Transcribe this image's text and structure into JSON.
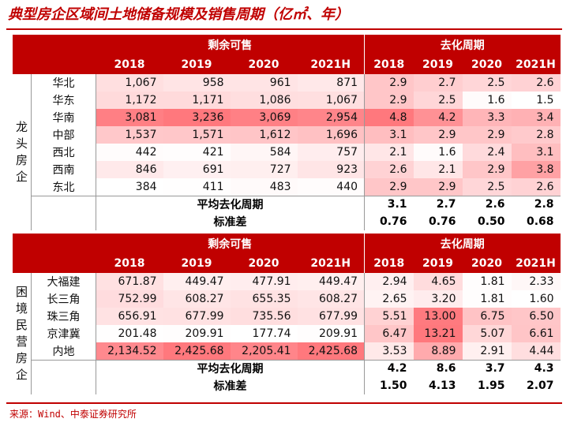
{
  "title": "典型房企区域间土地储备规模及销售周期（亿㎡、年）",
  "headers": {
    "inventory": "剩余可售",
    "cycle": "去化周期",
    "years": [
      "2018",
      "2019",
      "2020",
      "2021H"
    ]
  },
  "colors": {
    "header_bg": "#c00000",
    "accent": "#c00000"
  },
  "sections": [
    {
      "group_label": "龙头房企",
      "rows": [
        {
          "region": "华北",
          "inventory": [
            "1,067",
            "958",
            "961",
            "871"
          ],
          "cycle": [
            "2.9",
            "2.7",
            "2.5",
            "2.6"
          ]
        },
        {
          "region": "华东",
          "inventory": [
            "1,172",
            "1,171",
            "1,086",
            "1,067"
          ],
          "cycle": [
            "2.9",
            "2.5",
            "1.6",
            "1.5"
          ]
        },
        {
          "region": "华南",
          "inventory": [
            "3,081",
            "3,236",
            "3,069",
            "2,954"
          ],
          "cycle": [
            "4.8",
            "4.2",
            "3.3",
            "3.4"
          ]
        },
        {
          "region": "中部",
          "inventory": [
            "1,537",
            "1,571",
            "1,612",
            "1,696"
          ],
          "cycle": [
            "3.1",
            "2.9",
            "2.9",
            "2.8"
          ]
        },
        {
          "region": "西北",
          "inventory": [
            "442",
            "421",
            "584",
            "757"
          ],
          "cycle": [
            "2.1",
            "1.6",
            "2.4",
            "3.1"
          ]
        },
        {
          "region": "西南",
          "inventory": [
            "846",
            "691",
            "727",
            "923"
          ],
          "cycle": [
            "2.6",
            "2.1",
            "2.9",
            "3.8"
          ]
        },
        {
          "region": "东北",
          "inventory": [
            "384",
            "411",
            "483",
            "440"
          ],
          "cycle": [
            "2.9",
            "2.9",
            "2.5",
            "2.6"
          ]
        }
      ],
      "avg_label": "平均去化周期",
      "avg": [
        "3.1",
        "2.7",
        "2.6",
        "2.8"
      ],
      "std_label": "标准差",
      "std": [
        "0.76",
        "0.76",
        "0.50",
        "0.68"
      ]
    },
    {
      "group_label": "困境民营房企",
      "rows": [
        {
          "region": "大福建",
          "inventory": [
            "671.87",
            "449.47",
            "477.91",
            "449.47"
          ],
          "cycle": [
            "2.94",
            "4.65",
            "1.81",
            "2.33"
          ]
        },
        {
          "region": "长三角",
          "inventory": [
            "752.99",
            "608.27",
            "655.35",
            "608.27"
          ],
          "cycle": [
            "2.65",
            "3.20",
            "1.81",
            "1.60"
          ]
        },
        {
          "region": "珠三角",
          "inventory": [
            "656.91",
            "677.99",
            "735.56",
            "677.99"
          ],
          "cycle": [
            "5.51",
            "13.00",
            "6.75",
            "6.50"
          ]
        },
        {
          "region": "京津冀",
          "inventory": [
            "201.48",
            "209.91",
            "177.74",
            "209.91"
          ],
          "cycle": [
            "6.47",
            "13.21",
            "5.07",
            "6.61"
          ]
        },
        {
          "region": "内地",
          "inventory": [
            "2,134.52",
            "2,425.68",
            "2,205.41",
            "2,425.68"
          ],
          "cycle": [
            "3.53",
            "8.89",
            "2.91",
            "4.44"
          ]
        }
      ],
      "avg_label": "平均去化周期",
      "avg": [
        "4.2",
        "8.6",
        "3.7",
        "4.3"
      ],
      "std_label": "标准差",
      "std": [
        "1.50",
        "4.13",
        "1.95",
        "2.07"
      ]
    }
  ],
  "source": "来源：Wind、中泰证券研究所"
}
